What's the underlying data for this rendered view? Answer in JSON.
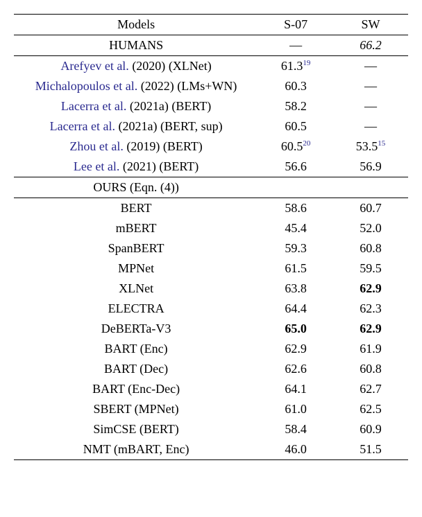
{
  "headers": {
    "models": "Models",
    "s07": "S-07",
    "sw": "SW"
  },
  "humans": {
    "label": "HUMANS",
    "s07": "—",
    "sw": "66.2"
  },
  "prior": [
    {
      "cite": "Arefyev et al.",
      "year": "(2020)",
      "paren": " (XLNet)",
      "s07": "61.3",
      "s07_sup": "19",
      "sw": "—",
      "sw_sup": ""
    },
    {
      "cite": "Michalopoulos et al.",
      "year": "(2022)",
      "paren": " (LMs+WN)",
      "s07": "60.3",
      "s07_sup": "",
      "sw": "—",
      "sw_sup": ""
    },
    {
      "cite": "Lacerra et al.",
      "year": "(2021a)",
      "paren": " (BERT)",
      "s07": "58.2",
      "s07_sup": "",
      "sw": "—",
      "sw_sup": ""
    },
    {
      "cite": "Lacerra et al.",
      "year": "(2021a)",
      "paren": " (BERT, sup)",
      "s07": "60.5",
      "s07_sup": "",
      "sw": "—",
      "sw_sup": ""
    },
    {
      "cite": "Zhou et al.",
      "year": "(2019)",
      "paren": " (BERT)",
      "s07": "60.5",
      "s07_sup": "20",
      "sw": "53.5",
      "sw_sup": "15"
    },
    {
      "cite": "Lee et al.",
      "year": "(2021)",
      "paren": " (BERT)",
      "s07": "56.6",
      "s07_sup": "",
      "sw": "56.9",
      "sw_sup": ""
    }
  ],
  "ours_header": "OURS (Eqn. (4))",
  "ours": [
    {
      "name": "BERT",
      "s07": "58.6",
      "sw": "60.7"
    },
    {
      "name": "mBERT",
      "s07": "45.4",
      "sw": "52.0"
    },
    {
      "name": "SpanBERT",
      "s07": "59.3",
      "sw": "60.8"
    },
    {
      "name": "MPNet",
      "s07": "61.5",
      "sw": "59.5"
    },
    {
      "name": "XLNet",
      "s07": "63.8",
      "sw": "62.9",
      "sw_bold": true
    },
    {
      "name": "ELECTRA",
      "s07": "64.4",
      "sw": "62.3"
    },
    {
      "name": "DeBERTa-V3",
      "s07": "65.0",
      "s07_bold": true,
      "sw": "62.9",
      "sw_bold": true
    },
    {
      "name": "BART (Enc)",
      "s07": "62.9",
      "sw": "61.9"
    },
    {
      "name": "BART (Dec)",
      "s07": "62.6",
      "sw": "60.8"
    },
    {
      "name": "BART (Enc-Dec)",
      "s07": "64.1",
      "sw": "62.7"
    },
    {
      "name": "SBERT (MPNet)",
      "s07": "61.0",
      "sw": "62.5"
    },
    {
      "name": "SimCSE (BERT)",
      "s07": "58.4",
      "sw": "60.9"
    },
    {
      "name": "NMT (mBART, Enc)",
      "s07": "46.0",
      "sw": "51.5"
    }
  ]
}
